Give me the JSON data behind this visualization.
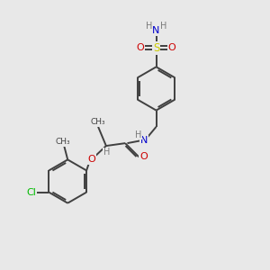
{
  "bg_color": "#e8e8e8",
  "bond_color": "#404040",
  "atom_colors": {
    "N": "#0000cc",
    "O": "#cc0000",
    "S": "#cccc00",
    "Cl": "#00bb00",
    "H": "#7a7a7a",
    "C": "#404040"
  },
  "bond_width": 1.4,
  "fig_size": [
    3.0,
    3.0
  ],
  "dpi": 100
}
